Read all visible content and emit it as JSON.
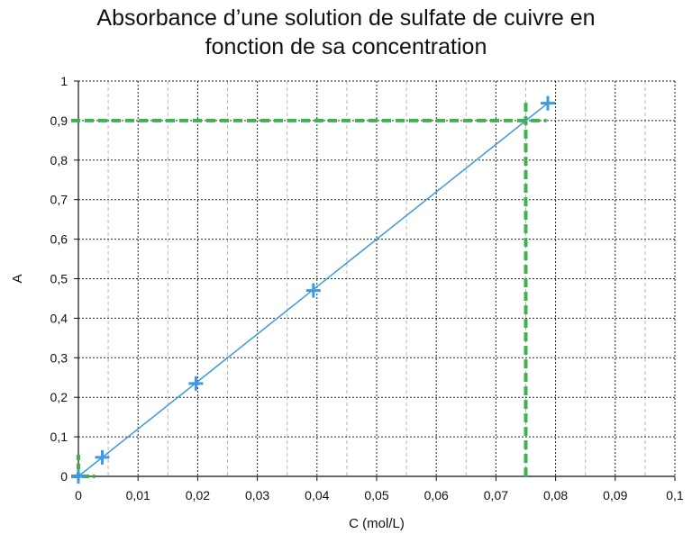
{
  "chart_data": {
    "type": "scatter",
    "title_lines": [
      "Absorbance d’une solution de sulfate de cuivre en",
      "fonction de sa concentration"
    ],
    "xlabel": "C (mol/L)",
    "ylabel": "A",
    "xlim": [
      0,
      0.1
    ],
    "ylim": [
      0,
      1
    ],
    "x_ticks": [
      0,
      0.01,
      0.02,
      0.03,
      0.04,
      0.05,
      0.06,
      0.07,
      0.08,
      0.09,
      0.1
    ],
    "x_tick_labels": [
      "0",
      "0,01",
      "0,02",
      "0,03",
      "0,04",
      "0,05",
      "0,06",
      "0,07",
      "0,08",
      "0,09",
      "0,1"
    ],
    "y_ticks": [
      0,
      0.1,
      0.2,
      0.3,
      0.4,
      0.5,
      0.6,
      0.7,
      0.8,
      0.9,
      1
    ],
    "y_tick_labels": [
      "0",
      "0,1",
      "0,2",
      "0,3",
      "0,4",
      "0,5",
      "0,6",
      "0,7",
      "0,8",
      "0,9",
      "1"
    ],
    "x_minor_ticks": [
      0.005,
      0.015,
      0.025,
      0.035,
      0.045,
      0.055,
      0.065,
      0.075,
      0.085,
      0.095
    ],
    "grid": true,
    "series": [
      {
        "marker": "plus",
        "color": "#3b9ae1",
        "x": [
          0,
          0.004,
          0.0197,
          0.0394,
          0.0787
        ],
        "y": [
          0,
          0.048,
          0.235,
          0.47,
          0.944
        ]
      }
    ],
    "trendline": {
      "color": "#3b9ae1",
      "from": [
        0,
        0
      ],
      "to": [
        0.0787,
        0.944
      ]
    },
    "guides": {
      "color": "#3cb44b",
      "point": [
        0.075,
        0.9
      ]
    }
  }
}
